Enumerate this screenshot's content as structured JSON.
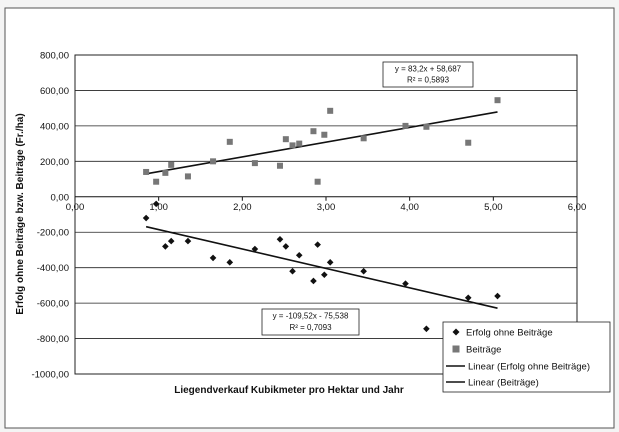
{
  "chart_data": {
    "type": "scatter",
    "xlabel": "Liegendverkauf Kubikmeter pro Hektar und Jahr",
    "ylabel": "Erfolg ohne Beiträge bzw. Beiträge (Fr./ha)",
    "xlim": [
      0,
      6
    ],
    "ylim": [
      -1000,
      800
    ],
    "x_ticks": [
      "0,00",
      "1,00",
      "2,00",
      "3,00",
      "4,00",
      "5,00",
      "6,00"
    ],
    "y_ticks": [
      "800,00",
      "600,00",
      "400,00",
      "200,00",
      "0,00",
      "-200,00",
      "-400,00",
      "-600,00",
      "-800,00",
      "-1000,00"
    ],
    "x_tick_values": [
      0,
      1,
      2,
      3,
      4,
      5,
      6
    ],
    "y_tick_values": [
      800,
      600,
      400,
      200,
      0,
      -200,
      -400,
      -600,
      -800,
      -1000
    ],
    "grid": true,
    "legend_position": "bottom-right",
    "series": [
      {
        "name": "Erfolg ohne Beiträge",
        "marker": "diamond",
        "color": "#111111",
        "points": [
          [
            0.85,
            -120
          ],
          [
            0.97,
            -40
          ],
          [
            1.08,
            -280
          ],
          [
            1.15,
            -250
          ],
          [
            1.35,
            -250
          ],
          [
            1.65,
            -345
          ],
          [
            1.85,
            -370
          ],
          [
            2.15,
            -295
          ],
          [
            2.45,
            -240
          ],
          [
            2.52,
            -280
          ],
          [
            2.6,
            -420
          ],
          [
            2.68,
            -330
          ],
          [
            2.85,
            -475
          ],
          [
            2.9,
            -270
          ],
          [
            2.98,
            -440
          ],
          [
            3.05,
            -370
          ],
          [
            3.45,
            -420
          ],
          [
            3.95,
            -490
          ],
          [
            4.2,
            -745
          ],
          [
            4.7,
            -570
          ],
          [
            5.05,
            -560
          ]
        ]
      },
      {
        "name": "Beiträge",
        "marker": "square",
        "color": "#777777",
        "points": [
          [
            0.85,
            140
          ],
          [
            0.97,
            85
          ],
          [
            1.08,
            135
          ],
          [
            1.15,
            180
          ],
          [
            1.35,
            115
          ],
          [
            1.65,
            200
          ],
          [
            1.85,
            310
          ],
          [
            2.15,
            190
          ],
          [
            2.45,
            175
          ],
          [
            2.52,
            325
          ],
          [
            2.6,
            290
          ],
          [
            2.68,
            300
          ],
          [
            2.85,
            370
          ],
          [
            2.9,
            85
          ],
          [
            2.98,
            350
          ],
          [
            3.05,
            485
          ],
          [
            3.45,
            330
          ],
          [
            3.95,
            400
          ],
          [
            4.2,
            395
          ],
          [
            4.7,
            305
          ],
          [
            5.05,
            545
          ]
        ]
      }
    ],
    "trendlines": [
      {
        "name": "Linear (Erfolg ohne Beiträge)",
        "slope": -109.52,
        "intercept": -75.538,
        "x_range": [
          0.85,
          5.05
        ],
        "equation": "y = -109,52x - 75,538",
        "r2": "R² = 0,7093"
      },
      {
        "name": "Linear (Beiträge)",
        "slope": 83.2,
        "intercept": 58.687,
        "x_range": [
          0.85,
          5.05
        ],
        "equation": "y = 83,2x + 58,687",
        "r2": "R² = 0,5893"
      }
    ]
  }
}
